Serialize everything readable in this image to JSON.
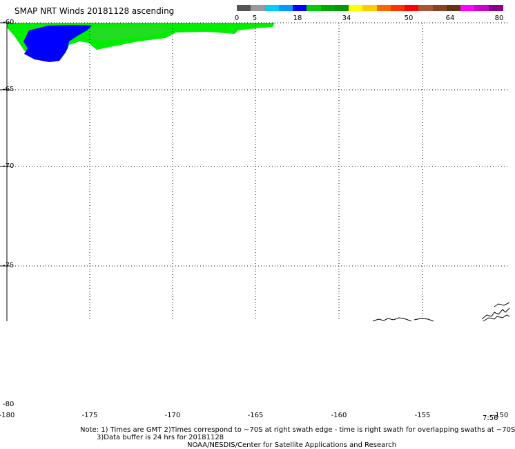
{
  "header": {
    "title": "SMAP NRT Winds 20181128 ascending"
  },
  "colorbar": {
    "tick_labels": [
      "0",
      "5",
      "18",
      "34",
      "50",
      "64",
      "80"
    ],
    "segment_colors": [
      "#555555",
      "#999999",
      "#00ccff",
      "#0099ff",
      "#0000ff",
      "#00cc00",
      "#00aa00",
      "#009900",
      "#ffff00",
      "#ffcc00",
      "#ff6600",
      "#ff3300",
      "#ff0000",
      "#aa5533",
      "#884422",
      "#663311",
      "#ff00ff",
      "#cc00cc",
      "#880088"
    ]
  },
  "map": {
    "lat_labels": [
      "-60",
      "-65",
      "-70",
      "-75",
      "-80"
    ],
    "lon_labels": [
      "-180",
      "-175",
      "-170",
      "-165",
      "-160",
      "-155",
      "-150"
    ],
    "time_label": "7:56",
    "wind_colors": {
      "blue": "#0000ff",
      "green": "#00ee00",
      "light_green": "#22dd22"
    }
  },
  "footer": {
    "note_line1": "Note: 1) Times are GMT 2)Times correspond to ~70S at right swath edge - time is right swath for overlapping swaths at ~70S",
    "note_line2": "3)Data buffer is 24 hrs for 20181128",
    "credit": "NOAA/NESDIS/Center for Satellite Applications and Research"
  }
}
